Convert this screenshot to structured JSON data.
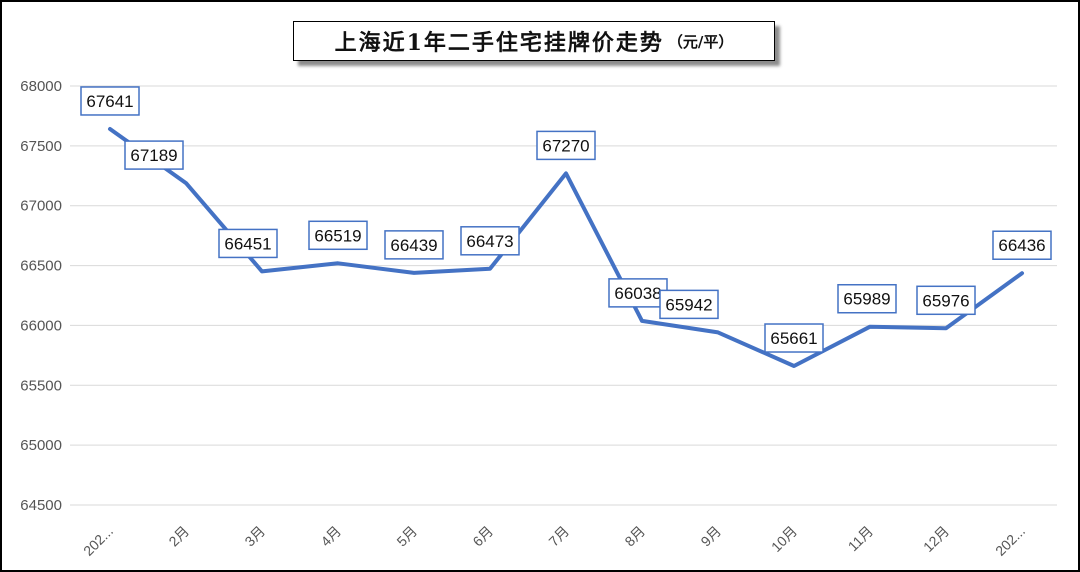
{
  "title": {
    "main": "上海近1年二手住宅挂牌价走势",
    "unit": "（元/平）"
  },
  "chart_data": {
    "type": "line",
    "title": "上海近1年二手住宅挂牌价走势（元/平）",
    "categories": [
      "202...",
      "2月",
      "3月",
      "4月",
      "5月",
      "6月",
      "7月",
      "8月",
      "9月",
      "10月",
      "11月",
      "12月",
      "202..."
    ],
    "series": [
      {
        "values": [
          67641,
          67189,
          66451,
          66519,
          66439,
          66473,
          67270,
          66038,
          65942,
          65661,
          65989,
          65976,
          66436
        ]
      }
    ],
    "ylim": [
      64500,
      68000
    ],
    "yticks": [
      64500,
      65000,
      65500,
      66000,
      66500,
      67000,
      67500,
      68000
    ],
    "xlabel": "",
    "ylabel": "",
    "grid": true,
    "legend": "none",
    "data_labels": true,
    "colors": {
      "line": "#4472C4",
      "label_border": "#4472C4",
      "grid": "#d9d9d9"
    }
  }
}
